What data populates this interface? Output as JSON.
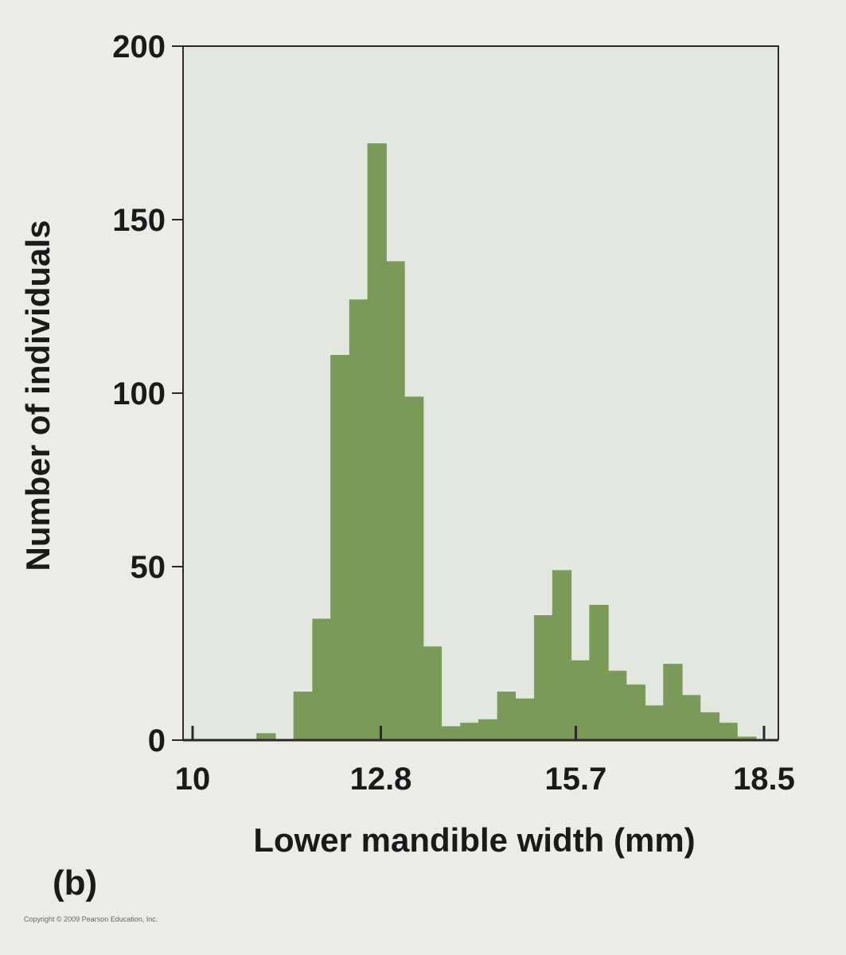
{
  "chart_data": {
    "type": "bar",
    "subtype": "histogram",
    "panel_label": "(b)",
    "xlabel": "Lower mandible width (mm)",
    "ylabel": "Number of individuals",
    "xlim": [
      10,
      18.5
    ],
    "ylim": [
      0,
      200
    ],
    "x_ticks": [
      {
        "value": 10,
        "label": "10"
      },
      {
        "value": 12.8,
        "label": "12.8"
      },
      {
        "value": 15.7,
        "label": "15.7"
      },
      {
        "value": 18.5,
        "label": "18.5"
      }
    ],
    "y_ticks": [
      {
        "value": 0,
        "label": "0"
      },
      {
        "value": 50,
        "label": "50"
      },
      {
        "value": 100,
        "label": "100"
      },
      {
        "value": 150,
        "label": "150"
      },
      {
        "value": 200,
        "label": "200"
      }
    ],
    "bin_width": 0.275,
    "bins": [
      {
        "x0": 10.95,
        "x1": 11.23,
        "count": 2
      },
      {
        "x0": 11.5,
        "x1": 11.78,
        "count": 14
      },
      {
        "x0": 11.78,
        "x1": 12.05,
        "count": 35
      },
      {
        "x0": 12.05,
        "x1": 12.33,
        "count": 111
      },
      {
        "x0": 12.33,
        "x1": 12.6,
        "count": 127
      },
      {
        "x0": 12.6,
        "x1": 12.88,
        "count": 172
      },
      {
        "x0": 12.88,
        "x1": 13.15,
        "count": 138
      },
      {
        "x0": 13.15,
        "x1": 13.43,
        "count": 99
      },
      {
        "x0": 13.43,
        "x1": 13.7,
        "count": 27
      },
      {
        "x0": 13.7,
        "x1": 13.98,
        "count": 4
      },
      {
        "x0": 13.98,
        "x1": 14.25,
        "count": 5
      },
      {
        "x0": 14.25,
        "x1": 14.53,
        "count": 6
      },
      {
        "x0": 14.53,
        "x1": 14.8,
        "count": 14
      },
      {
        "x0": 14.8,
        "x1": 15.08,
        "count": 12
      },
      {
        "x0": 15.08,
        "x1": 15.35,
        "count": 36
      },
      {
        "x0": 15.35,
        "x1": 15.63,
        "count": 49
      },
      {
        "x0": 15.63,
        "x1": 15.9,
        "count": 23
      },
      {
        "x0": 15.9,
        "x1": 16.18,
        "count": 39
      },
      {
        "x0": 16.18,
        "x1": 16.45,
        "count": 20
      },
      {
        "x0": 16.45,
        "x1": 16.73,
        "count": 16
      },
      {
        "x0": 16.73,
        "x1": 17.0,
        "count": 10
      },
      {
        "x0": 17.0,
        "x1": 17.28,
        "count": 22
      },
      {
        "x0": 17.28,
        "x1": 17.55,
        "count": 13
      },
      {
        "x0": 17.55,
        "x1": 17.83,
        "count": 8
      },
      {
        "x0": 17.83,
        "x1": 18.1,
        "count": 5
      },
      {
        "x0": 18.1,
        "x1": 18.38,
        "count": 1
      }
    ],
    "colors": {
      "bar": "#7a9a58",
      "plot_background": "#e2e8e0",
      "frame": "#2a2a2a",
      "page_background": "#ecebe6"
    }
  },
  "copyright": "Copyright © 2009 Pearson Education, Inc."
}
